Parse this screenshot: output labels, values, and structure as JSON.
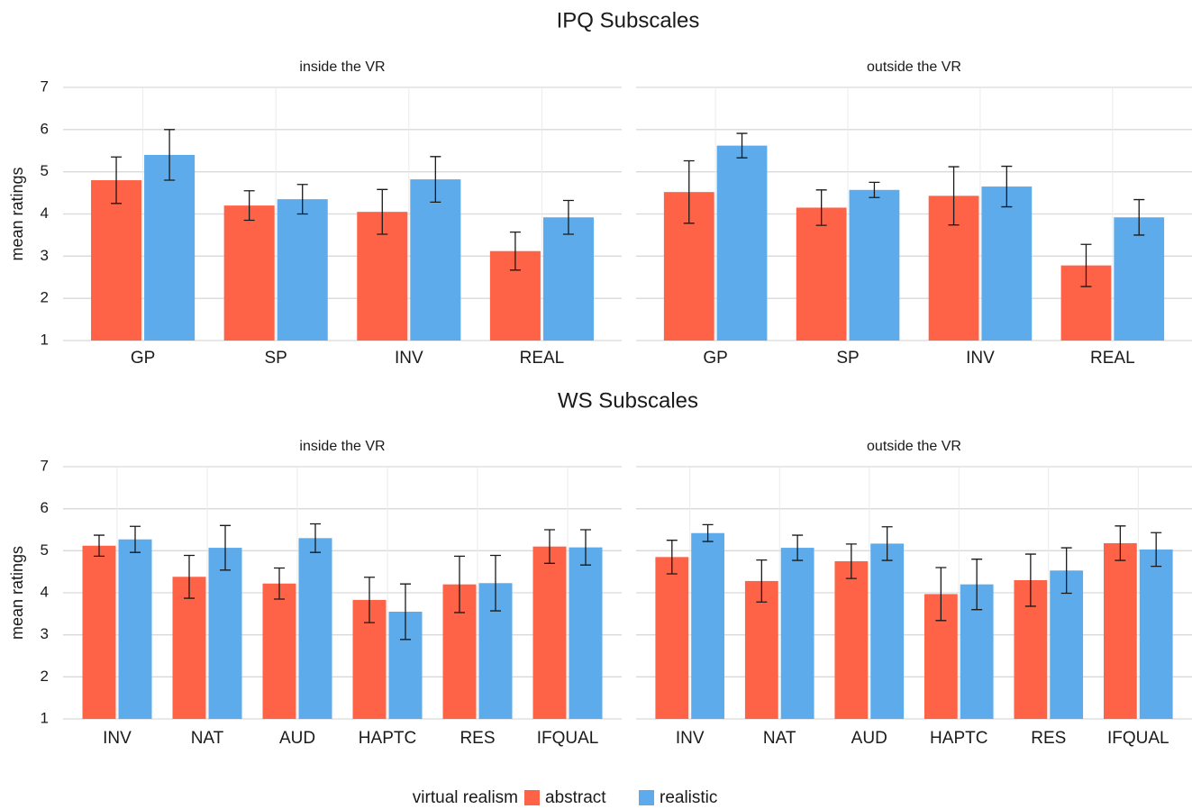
{
  "legend": {
    "title": "virtual realism",
    "position": "bottom"
  },
  "chart_data": [
    {
      "type": "bar",
      "title": "IPQ Subscales",
      "subtitle": "inside the VR",
      "y_label": "mean ratings",
      "y_tick_labels": true,
      "categories": [
        "GP",
        "SP",
        "INV",
        "REAL"
      ],
      "series": [
        {
          "name": "abstract",
          "color": "#ff6347",
          "values": [
            4.8,
            4.2,
            4.05,
            3.12
          ],
          "errors": [
            0.55,
            0.35,
            0.53,
            0.45
          ]
        },
        {
          "name": "realistic",
          "color": "#5dabeb",
          "values": [
            5.4,
            4.35,
            4.82,
            3.92
          ],
          "errors": [
            0.6,
            0.35,
            0.54,
            0.4
          ]
        }
      ],
      "ylim": [
        1,
        7
      ],
      "yticks": [
        1,
        2,
        3,
        4,
        5,
        6,
        7
      ],
      "grid": true
    },
    {
      "type": "bar",
      "subtitle": "outside the VR",
      "y_tick_labels": false,
      "categories": [
        "GP",
        "SP",
        "INV",
        "REAL"
      ],
      "series": [
        {
          "name": "abstract",
          "color": "#ff6347",
          "values": [
            4.52,
            4.15,
            4.43,
            2.78
          ],
          "errors": [
            0.74,
            0.42,
            0.69,
            0.5
          ]
        },
        {
          "name": "realistic",
          "color": "#5dabeb",
          "values": [
            5.62,
            4.57,
            4.65,
            3.92
          ],
          "errors": [
            0.29,
            0.18,
            0.48,
            0.42
          ]
        }
      ],
      "ylim": [
        1,
        7
      ],
      "yticks": [
        1,
        2,
        3,
        4,
        5,
        6,
        7
      ],
      "grid": true
    },
    {
      "type": "bar",
      "title": "WS Subscales",
      "subtitle": "inside the VR",
      "y_label": "mean ratings",
      "y_tick_labels": true,
      "categories": [
        "INV",
        "NAT",
        "AUD",
        "HAPTC",
        "RES",
        "IFQUAL"
      ],
      "series": [
        {
          "name": "abstract",
          "color": "#ff6347",
          "values": [
            5.12,
            4.38,
            4.22,
            3.83,
            4.2,
            5.1
          ],
          "errors": [
            0.25,
            0.51,
            0.37,
            0.54,
            0.67,
            0.4
          ]
        },
        {
          "name": "realistic",
          "color": "#5dabeb",
          "values": [
            5.27,
            5.07,
            5.3,
            3.55,
            4.23,
            5.08
          ],
          "errors": [
            0.31,
            0.53,
            0.34,
            0.66,
            0.66,
            0.42
          ]
        }
      ],
      "ylim": [
        1,
        7
      ],
      "yticks": [
        1,
        2,
        3,
        4,
        5,
        6,
        7
      ],
      "grid": true
    },
    {
      "type": "bar",
      "subtitle": "outside the VR",
      "y_tick_labels": false,
      "categories": [
        "INV",
        "NAT",
        "AUD",
        "HAPTC",
        "RES",
        "IFQUAL"
      ],
      "series": [
        {
          "name": "abstract",
          "color": "#ff6347",
          "values": [
            4.85,
            4.28,
            4.75,
            3.97,
            4.3,
            5.18
          ],
          "errors": [
            0.4,
            0.5,
            0.41,
            0.63,
            0.62,
            0.41
          ]
        },
        {
          "name": "realistic",
          "color": "#5dabeb",
          "values": [
            5.42,
            5.07,
            5.17,
            4.2,
            4.53,
            5.03
          ],
          "errors": [
            0.2,
            0.3,
            0.4,
            0.6,
            0.54,
            0.4
          ]
        }
      ],
      "ylim": [
        1,
        7
      ],
      "yticks": [
        1,
        2,
        3,
        4,
        5,
        6,
        7
      ],
      "grid": true
    }
  ]
}
